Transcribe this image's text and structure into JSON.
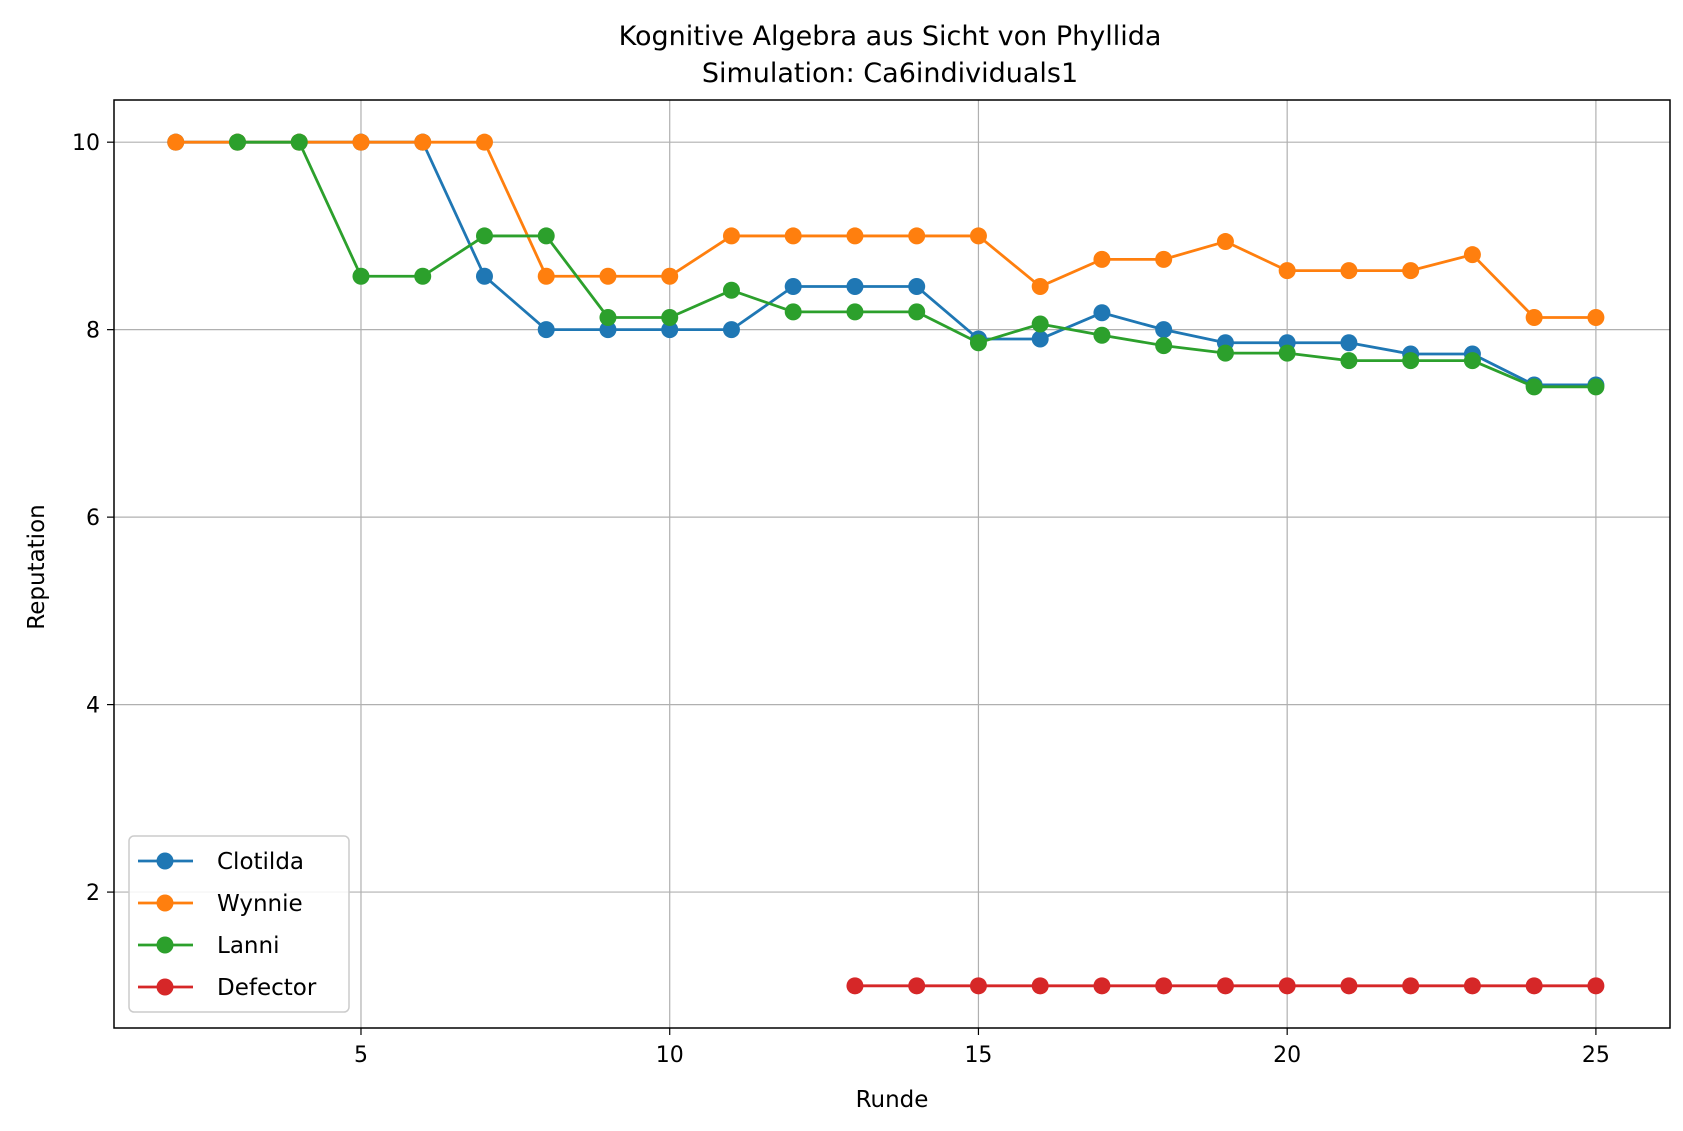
{
  "chart_data": {
    "type": "line",
    "title": "Kognitive Algebra aus Sicht von Phyllida",
    "subtitle": "Simulation: Ca6individuals1",
    "xlabel": "Runde",
    "ylabel": "Reputation",
    "xlim": [
      1,
      26.2
    ],
    "ylim": [
      0.55,
      10.45
    ],
    "xticks": [
      5,
      10,
      15,
      20,
      25
    ],
    "yticks": [
      2,
      4,
      6,
      8,
      10
    ],
    "grid": true,
    "legend_position": "lower-left",
    "series": [
      {
        "name": "Clotilda",
        "color": "#1f77b4",
        "x": [
          2,
          3,
          4,
          5,
          6,
          7,
          8,
          9,
          10,
          11,
          12,
          13,
          14,
          15,
          16,
          17,
          18,
          19,
          20,
          21,
          22,
          23,
          24,
          25
        ],
        "y": [
          10,
          10,
          10,
          10,
          10,
          8.57,
          8.0,
          8.0,
          8.0,
          8.0,
          8.46,
          8.46,
          8.46,
          7.9,
          7.9,
          8.18,
          8.0,
          7.86,
          7.86,
          7.86,
          7.74,
          7.74,
          7.41,
          7.41
        ]
      },
      {
        "name": "Wynnie",
        "color": "#ff7f0e",
        "x": [
          2,
          3,
          4,
          5,
          6,
          7,
          8,
          9,
          10,
          11,
          12,
          13,
          14,
          15,
          16,
          17,
          18,
          19,
          20,
          21,
          22,
          23,
          24,
          25
        ],
        "y": [
          10,
          10,
          10,
          10,
          10,
          10,
          8.57,
          8.57,
          8.57,
          9.0,
          9.0,
          9.0,
          9.0,
          9.0,
          8.46,
          8.75,
          8.75,
          8.94,
          8.63,
          8.63,
          8.63,
          8.8,
          8.13,
          8.13
        ]
      },
      {
        "name": "Lanni",
        "color": "#2ca02c",
        "x": [
          3,
          4,
          5,
          6,
          7,
          8,
          9,
          10,
          11,
          12,
          13,
          14,
          15,
          16,
          17,
          18,
          19,
          20,
          21,
          22,
          23,
          24,
          25
        ],
        "y": [
          10,
          10,
          8.57,
          8.57,
          9.0,
          9.0,
          8.13,
          8.13,
          8.42,
          8.19,
          8.19,
          8.19,
          7.86,
          8.06,
          7.94,
          7.83,
          7.75,
          7.75,
          7.67,
          7.67,
          7.67,
          7.39,
          7.39
        ]
      },
      {
        "name": "Defector",
        "color": "#d62728",
        "x": [
          13,
          14,
          15,
          16,
          17,
          18,
          19,
          20,
          21,
          22,
          23,
          24,
          25
        ],
        "y": [
          1,
          1,
          1,
          1,
          1,
          1,
          1,
          1,
          1,
          1,
          1,
          1,
          1
        ]
      }
    ]
  }
}
